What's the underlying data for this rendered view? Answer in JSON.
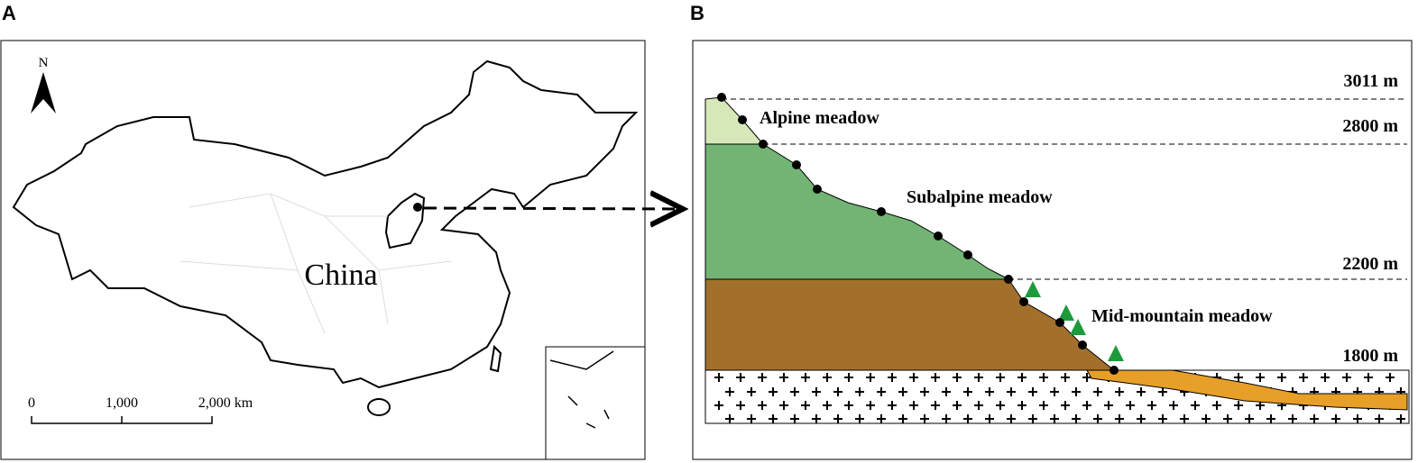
{
  "panels": {
    "a": {
      "label": "A",
      "north": "N",
      "country": "China",
      "scale": [
        "0",
        "1,000",
        "2,000 km"
      ]
    },
    "b": {
      "label": "B",
      "elevations": [
        "3011 m",
        "2800 m",
        "2200 m",
        "1800 m"
      ],
      "zones": [
        "Alpine meadow",
        "Subalpine meadow",
        "Mid-mountain meadow"
      ]
    }
  }
}
